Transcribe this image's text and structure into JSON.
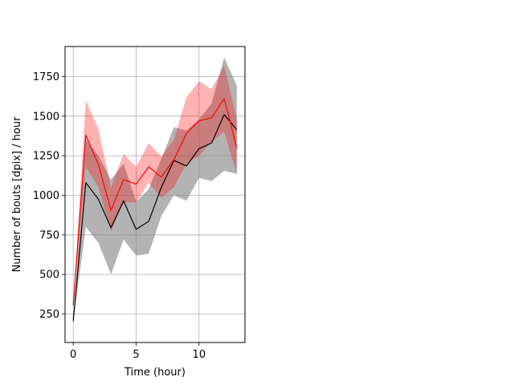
{
  "chart_data": {
    "type": "line",
    "title": "",
    "xlabel": "Time (hour)",
    "ylabel": "Number of bouts [dpix]  / hour",
    "xlim": [
      -0.65,
      13.65
    ],
    "ylim": [
      70,
      1940
    ],
    "xticks": [
      0,
      5,
      10
    ],
    "yticks": [
      250,
      500,
      750,
      1000,
      1250,
      1500,
      1750
    ],
    "grid": true,
    "legend": "none",
    "x": [
      0,
      1,
      2,
      3,
      4,
      5,
      6,
      7,
      8,
      9,
      10,
      11,
      12,
      13
    ],
    "series": [
      {
        "color": "#000000",
        "band_color": "#808080",
        "band_opacity": 0.6,
        "values": [
          205,
          1080,
          975,
          795,
          965,
          785,
          835,
          1050,
          1220,
          1185,
          1295,
          1330,
          1510,
          1415
        ],
        "lower": [
          200,
          800,
          700,
          500,
          720,
          620,
          630,
          870,
          1000,
          965,
          1110,
          1090,
          1155,
          1135
        ],
        "upper": [
          210,
          1350,
          1250,
          1100,
          1200,
          960,
          1040,
          1230,
          1430,
          1410,
          1480,
          1580,
          1870,
          1695
        ]
      },
      {
        "color": "#ff0000",
        "band_color": "#ff0000",
        "band_opacity": 0.3,
        "values": [
          305,
          1380,
          1195,
          905,
          1100,
          1070,
          1180,
          1115,
          1225,
          1390,
          1470,
          1490,
          1610,
          1300
        ],
        "lower": [
          300,
          1180,
          1050,
          775,
          955,
          955,
          1080,
          985,
          1050,
          1200,
          1250,
          1340,
          1400,
          1135
        ],
        "upper": [
          310,
          1600,
          1420,
          1050,
          1260,
          1180,
          1330,
          1245,
          1350,
          1620,
          1720,
          1670,
          1820,
          1480
        ]
      }
    ]
  }
}
